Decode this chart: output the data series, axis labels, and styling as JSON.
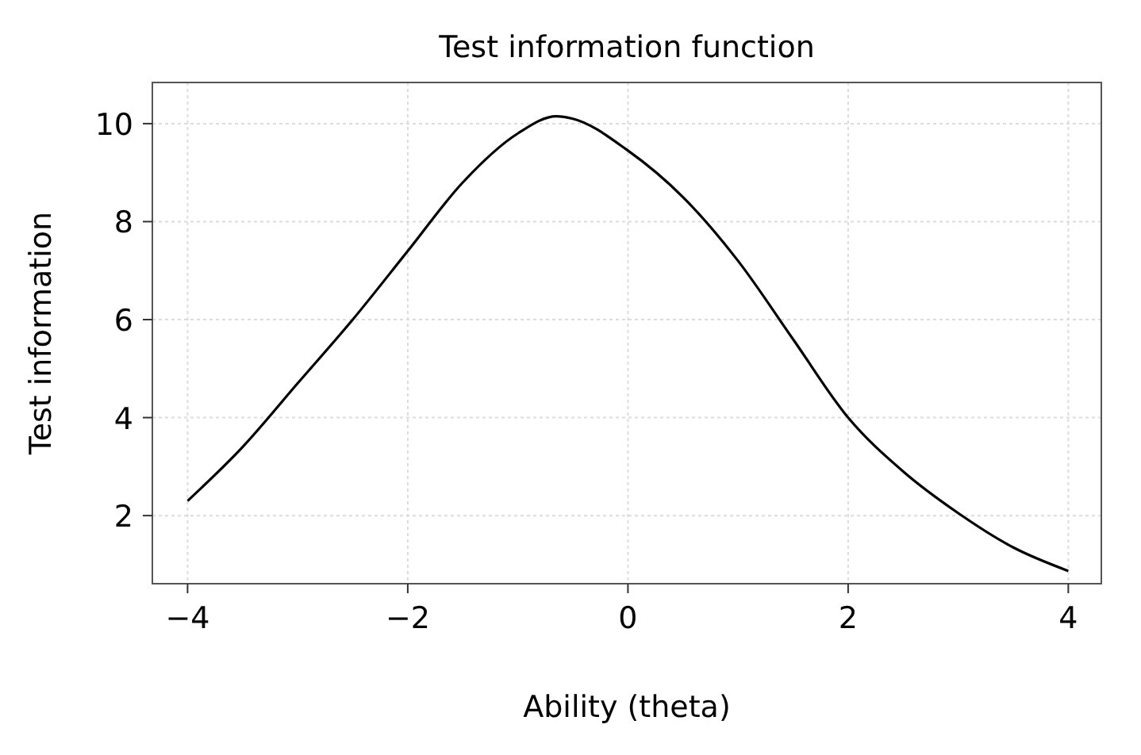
{
  "chart_data": {
    "type": "line",
    "title": "Test information function",
    "xlabel": "Ability (theta)",
    "ylabel": "Test information",
    "x": [
      -4,
      -3.5,
      -3,
      -2.5,
      -2,
      -1.5,
      -1,
      -0.65,
      -0.5,
      0,
      0.5,
      1,
      1.5,
      2,
      2.5,
      3,
      3.5,
      4
    ],
    "series": [
      {
        "color": "#000000",
        "values": [
          2.3,
          3.4,
          4.7,
          6.0,
          7.4,
          8.8,
          9.8,
          10.15,
          10.1,
          9.45,
          8.5,
          7.2,
          5.6,
          4.0,
          2.9,
          2.05,
          1.35,
          0.87
        ]
      }
    ],
    "xlim": [
      -4.32,
      4.3
    ],
    "ylim": [
      0.61,
      10.84
    ],
    "xticks": [
      {
        "value": -4,
        "label": "−4"
      },
      {
        "value": -2,
        "label": "−2"
      },
      0,
      2,
      4
    ],
    "yticks": [
      2,
      4,
      6,
      8,
      10
    ],
    "grid": true,
    "line_style": "solid",
    "marker": "none"
  }
}
